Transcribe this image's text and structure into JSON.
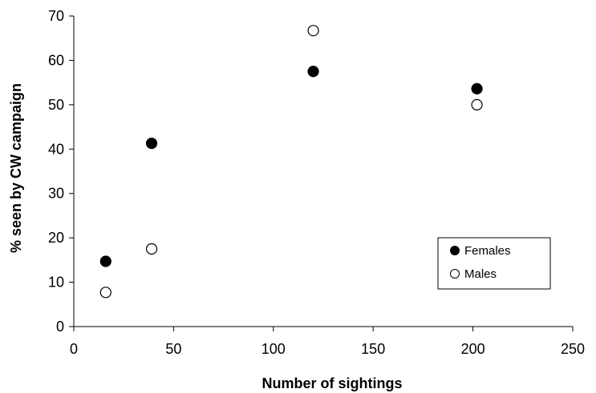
{
  "chart_data": {
    "type": "scatter",
    "xlabel": "Number of sightings",
    "ylabel": "% seen by CW campaign",
    "xlim": [
      0,
      250
    ],
    "ylim": [
      0,
      70
    ],
    "xticks": [
      0,
      50,
      100,
      150,
      200,
      250
    ],
    "yticks": [
      0,
      10,
      20,
      30,
      40,
      50,
      60,
      70
    ],
    "grid": false,
    "legend_position": "lower-right",
    "series": [
      {
        "name": "Females",
        "marker": "filled-circle",
        "color": "#000000",
        "points": [
          {
            "x": 16,
            "y": 14.7
          },
          {
            "x": 39,
            "y": 41.3
          },
          {
            "x": 120,
            "y": 57.5
          },
          {
            "x": 202,
            "y": 53.6
          }
        ]
      },
      {
        "name": "Males",
        "marker": "open-circle",
        "color": "#000000",
        "points": [
          {
            "x": 16,
            "y": 7.7
          },
          {
            "x": 39,
            "y": 17.5
          },
          {
            "x": 120,
            "y": 66.7
          },
          {
            "x": 202,
            "y": 50.0
          }
        ]
      }
    ]
  }
}
